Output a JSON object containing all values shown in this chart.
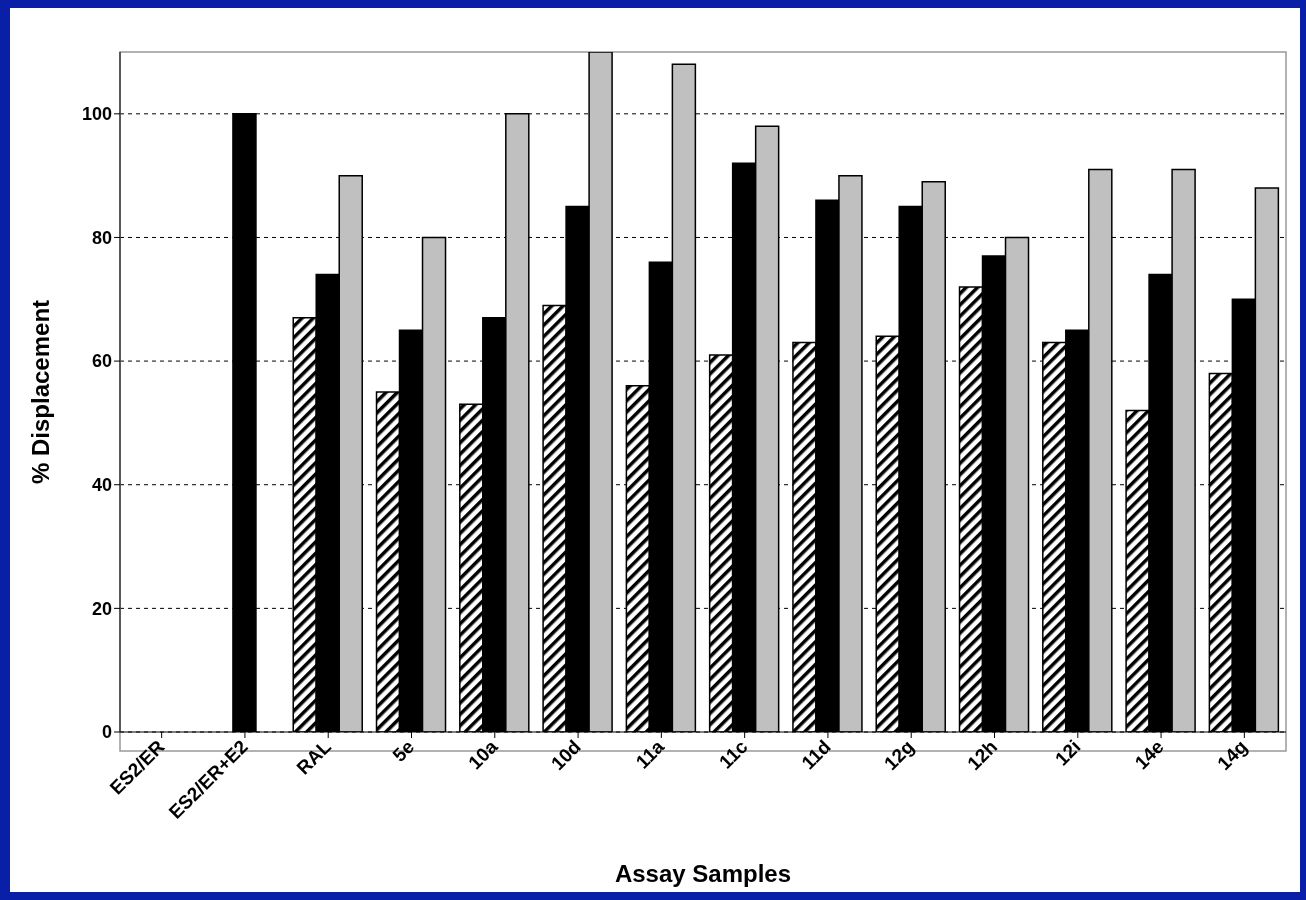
{
  "chart_data": {
    "type": "bar",
    "xlabel": "Assay Samples",
    "ylabel": "% Displacement",
    "categories": [
      "ES2/ER",
      "ES2/ER+E2",
      "RAL",
      "5e",
      "10a",
      "10d",
      "11a",
      "11c",
      "11d",
      "12g",
      "12h",
      "12i",
      "14e",
      "14g"
    ],
    "series": [
      {
        "color": "#000000",
        "values": [
          null,
          null,
          67,
          55,
          53,
          69,
          56,
          61,
          63,
          64,
          72,
          63,
          52,
          58
        ]
      },
      {
        "color": "#000000",
        "values": [
          null,
          100,
          74,
          65,
          67,
          85,
          76,
          92,
          86,
          85,
          77,
          65,
          74,
          70
        ]
      },
      {
        "color": "#c0c0c0",
        "values": [
          null,
          null,
          90,
          80,
          100,
          110,
          108,
          98,
          90,
          89,
          80,
          91,
          91,
          88
        ]
      }
    ],
    "ylim": [
      0,
      110
    ],
    "yticks": [
      0,
      20,
      40,
      60,
      80,
      100
    ],
    "grid": "y"
  }
}
